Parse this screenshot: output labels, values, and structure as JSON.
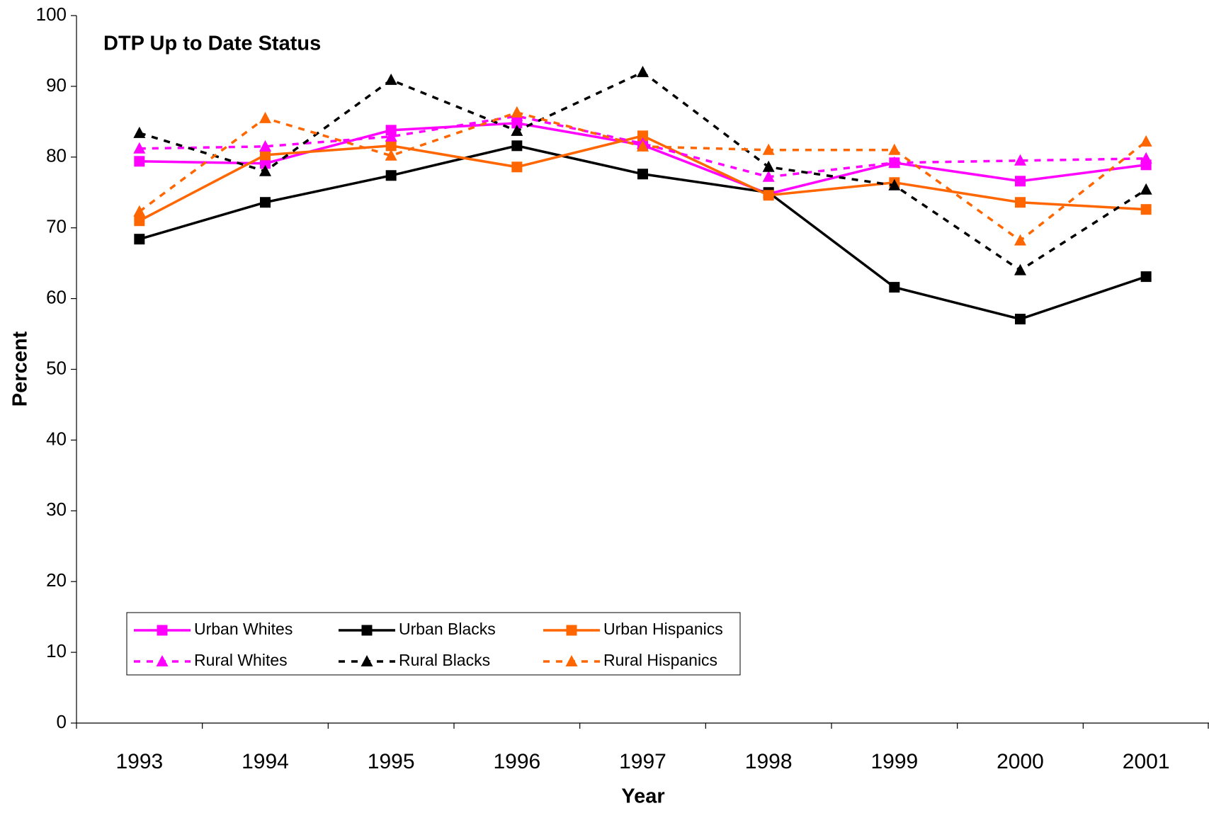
{
  "chart_data": {
    "type": "line",
    "title": "DTP Up to Date Status",
    "x_label": "Year",
    "y_label": "Percent",
    "categories": [
      "1993",
      "1994",
      "1995",
      "1996",
      "1997",
      "1998",
      "1999",
      "2000",
      "2001"
    ],
    "ylim": [
      0,
      100
    ],
    "yticks": [
      0,
      10,
      20,
      30,
      40,
      50,
      60,
      70,
      80,
      90,
      100
    ],
    "grid": false,
    "series": [
      {
        "name": "Urban Whites",
        "color": "#ff00ff",
        "dashed": false,
        "marker": "square",
        "values": [
          79.4,
          79.1,
          83.8,
          84.8,
          81.7,
          74.8,
          79.2,
          76.6,
          78.9
        ]
      },
      {
        "name": "Urban Blacks",
        "color": "#000000",
        "dashed": false,
        "marker": "square",
        "values": [
          68.4,
          73.6,
          77.4,
          81.6,
          77.6,
          75.0,
          61.6,
          57.1,
          63.1
        ]
      },
      {
        "name": "Urban Hispanics",
        "color": "#ff6600",
        "dashed": false,
        "marker": "square",
        "values": [
          71.0,
          80.3,
          81.6,
          78.6,
          83.0,
          74.6,
          76.4,
          73.6,
          72.6
        ]
      },
      {
        "name": "Rural Whites",
        "color": "#ff00ff",
        "dashed": true,
        "marker": "triangle",
        "values": [
          81.2,
          81.5,
          82.9,
          85.8,
          81.9,
          77.2,
          79.2,
          79.5,
          79.8
        ]
      },
      {
        "name": "Rural Blacks",
        "color": "#000000",
        "dashed": true,
        "marker": "triangle",
        "values": [
          83.4,
          78.0,
          90.9,
          83.7,
          92.0,
          78.6,
          76.0,
          64.0,
          75.4
        ]
      },
      {
        "name": "Rural Hispanics",
        "color": "#ff6600",
        "dashed": true,
        "marker": "triangle",
        "values": [
          72.3,
          85.5,
          80.2,
          86.3,
          81.5,
          81.0,
          81.0,
          68.2,
          82.2
        ]
      }
    ]
  }
}
